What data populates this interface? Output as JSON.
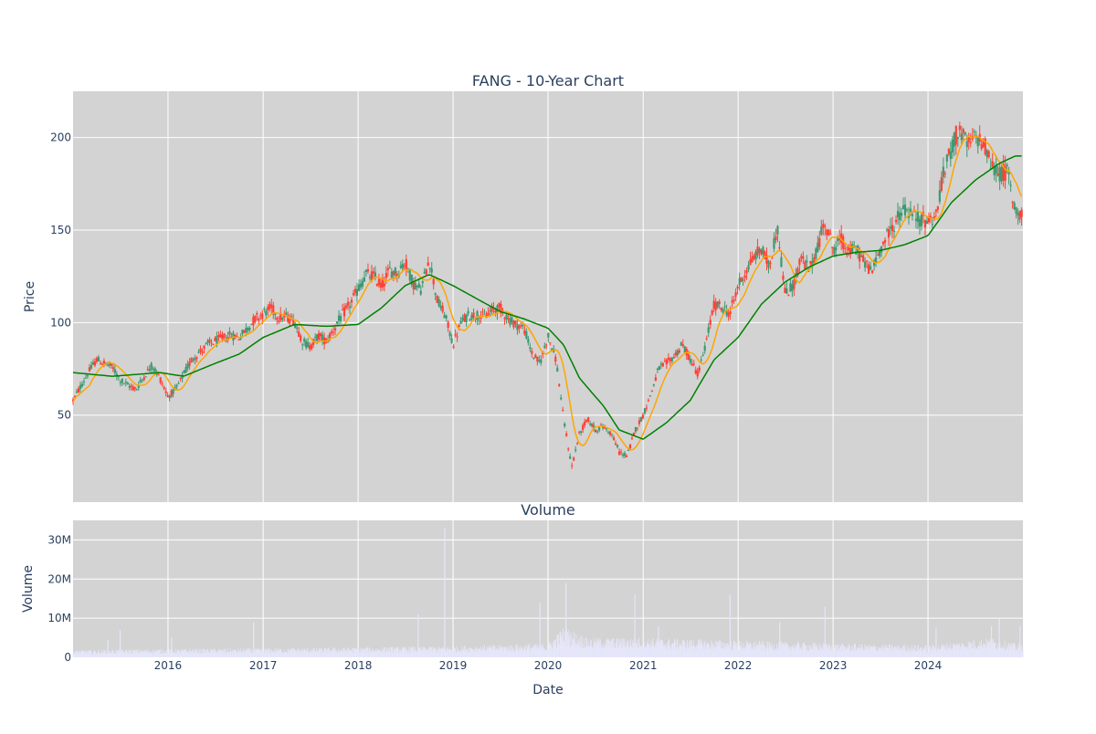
{
  "chart_data": [
    {
      "type": "candlestick",
      "title": "FANG - 10-Year Chart",
      "ylabel": "Price",
      "xlabel": "",
      "x_range": [
        "2015-01-01",
        "2024-12-31"
      ],
      "ylim": [
        3,
        225
      ],
      "grid": true,
      "plot_bg": "#d3d3d3",
      "up_color": "#3d9970",
      "down_color": "#ff4136",
      "ma_short_color": "#ffa500",
      "ma_long_color": "#008000",
      "x_ticks": [
        {
          "date": "2016-01-01",
          "label": "2016"
        },
        {
          "date": "2017-01-01",
          "label": "2017"
        },
        {
          "date": "2018-01-01",
          "label": "2018"
        },
        {
          "date": "2019-01-01",
          "label": "2019"
        },
        {
          "date": "2020-01-01",
          "label": "2020"
        },
        {
          "date": "2021-01-01",
          "label": "2021"
        },
        {
          "date": "2022-01-01",
          "label": "2022"
        },
        {
          "date": "2023-01-01",
          "label": "2023"
        },
        {
          "date": "2024-01-01",
          "label": "2024"
        }
      ],
      "y_ticks": [
        {
          "value": 50,
          "label": "50"
        },
        {
          "value": 100,
          "label": "100"
        },
        {
          "value": 150,
          "label": "150"
        },
        {
          "value": 200,
          "label": "200"
        }
      ],
      "close_path": [
        [
          "2015-01-01",
          58
        ],
        [
          "2015-02-01",
          66
        ],
        [
          "2015-03-01",
          73
        ],
        [
          "2015-04-01",
          80
        ],
        [
          "2015-05-01",
          78
        ],
        [
          "2015-06-01",
          76
        ],
        [
          "2015-07-01",
          69
        ],
        [
          "2015-08-01",
          66
        ],
        [
          "2015-09-01",
          64
        ],
        [
          "2015-10-01",
          71
        ],
        [
          "2015-11-01",
          77
        ],
        [
          "2015-12-01",
          70
        ],
        [
          "2016-01-01",
          60
        ],
        [
          "2016-02-01",
          64
        ],
        [
          "2016-03-01",
          72
        ],
        [
          "2016-04-01",
          80
        ],
        [
          "2016-05-01",
          84
        ],
        [
          "2016-06-01",
          88
        ],
        [
          "2016-07-01",
          90
        ],
        [
          "2016-08-01",
          92
        ],
        [
          "2016-09-01",
          93
        ],
        [
          "2016-10-01",
          92
        ],
        [
          "2016-11-01",
          97
        ],
        [
          "2016-12-01",
          102
        ],
        [
          "2017-01-01",
          105
        ],
        [
          "2017-02-01",
          108
        ],
        [
          "2017-03-01",
          103
        ],
        [
          "2017-04-01",
          103
        ],
        [
          "2017-05-01",
          101
        ],
        [
          "2017-06-01",
          90
        ],
        [
          "2017-07-01",
          87
        ],
        [
          "2017-08-01",
          93
        ],
        [
          "2017-09-01",
          90
        ],
        [
          "2017-10-01",
          97
        ],
        [
          "2017-11-01",
          104
        ],
        [
          "2017-12-01",
          110
        ],
        [
          "2018-01-01",
          118
        ],
        [
          "2018-02-01",
          126
        ],
        [
          "2018-03-01",
          125
        ],
        [
          "2018-04-01",
          120
        ],
        [
          "2018-05-01",
          128
        ],
        [
          "2018-06-01",
          127
        ],
        [
          "2018-07-01",
          133
        ],
        [
          "2018-08-01",
          121
        ],
        [
          "2018-09-01",
          118
        ],
        [
          "2018-10-01",
          135
        ],
        [
          "2018-11-01",
          112
        ],
        [
          "2018-12-01",
          104
        ],
        [
          "2019-01-01",
          88
        ],
        [
          "2019-02-01",
          100
        ],
        [
          "2019-03-01",
          104
        ],
        [
          "2019-04-01",
          104
        ],
        [
          "2019-05-01",
          103
        ],
        [
          "2019-06-01",
          107
        ],
        [
          "2019-07-01",
          108
        ],
        [
          "2019-08-01",
          102
        ],
        [
          "2019-09-01",
          99
        ],
        [
          "2019-10-01",
          97
        ],
        [
          "2019-11-01",
          83
        ],
        [
          "2019-12-01",
          78
        ],
        [
          "2020-01-01",
          93
        ],
        [
          "2020-02-01",
          80
        ],
        [
          "2020-03-01",
          48
        ],
        [
          "2020-04-01",
          22
        ],
        [
          "2020-05-01",
          40
        ],
        [
          "2020-06-01",
          48
        ],
        [
          "2020-07-01",
          42
        ],
        [
          "2020-08-01",
          44
        ],
        [
          "2020-09-01",
          40
        ],
        [
          "2020-10-01",
          30
        ],
        [
          "2020-11-01",
          28
        ],
        [
          "2020-12-01",
          42
        ],
        [
          "2021-01-01",
          50
        ],
        [
          "2021-02-01",
          62
        ],
        [
          "2021-03-01",
          75
        ],
        [
          "2021-04-01",
          78
        ],
        [
          "2021-05-01",
          82
        ],
        [
          "2021-06-01",
          88
        ],
        [
          "2021-07-01",
          80
        ],
        [
          "2021-08-01",
          72
        ],
        [
          "2021-09-01",
          90
        ],
        [
          "2021-10-01",
          110
        ],
        [
          "2021-11-01",
          108
        ],
        [
          "2021-12-01",
          105
        ],
        [
          "2022-01-01",
          120
        ],
        [
          "2022-02-01",
          128
        ],
        [
          "2022-03-01",
          135
        ],
        [
          "2022-04-01",
          140
        ],
        [
          "2022-05-01",
          130
        ],
        [
          "2022-06-01",
          152
        ],
        [
          "2022-07-01",
          115
        ],
        [
          "2022-08-01",
          120
        ],
        [
          "2022-09-01",
          135
        ],
        [
          "2022-10-01",
          128
        ],
        [
          "2022-11-01",
          140
        ],
        [
          "2022-12-01",
          155
        ],
        [
          "2023-01-01",
          140
        ],
        [
          "2023-02-01",
          145
        ],
        [
          "2023-03-01",
          138
        ],
        [
          "2023-04-01",
          140
        ],
        [
          "2023-05-01",
          132
        ],
        [
          "2023-06-01",
          128
        ],
        [
          "2023-07-01",
          140
        ],
        [
          "2023-08-01",
          148
        ],
        [
          "2023-09-01",
          155
        ],
        [
          "2023-10-01",
          162
        ],
        [
          "2023-11-01",
          158
        ],
        [
          "2023-12-01",
          156
        ],
        [
          "2024-01-01",
          155
        ],
        [
          "2024-02-01",
          158
        ],
        [
          "2024-03-01",
          180
        ],
        [
          "2024-04-01",
          195
        ],
        [
          "2024-05-01",
          205
        ],
        [
          "2024-06-01",
          195
        ],
        [
          "2024-07-01",
          200
        ],
        [
          "2024-08-01",
          198
        ],
        [
          "2024-09-01",
          185
        ],
        [
          "2024-10-01",
          180
        ],
        [
          "2024-11-01",
          182
        ],
        [
          "2024-12-01",
          160
        ]
      ],
      "ma_long": [
        [
          "2015-01-01",
          73
        ],
        [
          "2015-06-01",
          71
        ],
        [
          "2015-12-01",
          73
        ],
        [
          "2016-03-01",
          71
        ],
        [
          "2016-07-01",
          78
        ],
        [
          "2016-10-01",
          83
        ],
        [
          "2017-01-01",
          92
        ],
        [
          "2017-05-01",
          99
        ],
        [
          "2017-09-01",
          98
        ],
        [
          "2018-01-01",
          99
        ],
        [
          "2018-04-01",
          108
        ],
        [
          "2018-07-01",
          120
        ],
        [
          "2018-10-01",
          126
        ],
        [
          "2019-01-01",
          120
        ],
        [
          "2019-04-01",
          113
        ],
        [
          "2019-07-01",
          106
        ],
        [
          "2019-10-01",
          102
        ],
        [
          "2020-01-01",
          97
        ],
        [
          "2020-03-01",
          88
        ],
        [
          "2020-05-01",
          70
        ],
        [
          "2020-08-01",
          55
        ],
        [
          "2020-10-01",
          42
        ],
        [
          "2021-01-01",
          37
        ],
        [
          "2021-04-01",
          46
        ],
        [
          "2021-07-01",
          58
        ],
        [
          "2021-10-01",
          80
        ],
        [
          "2022-01-01",
          92
        ],
        [
          "2022-04-01",
          110
        ],
        [
          "2022-07-01",
          122
        ],
        [
          "2022-10-01",
          130
        ],
        [
          "2023-01-01",
          136
        ],
        [
          "2023-04-01",
          138
        ],
        [
          "2023-07-01",
          139
        ],
        [
          "2023-10-01",
          142
        ],
        [
          "2024-01-01",
          147
        ],
        [
          "2024-04-01",
          165
        ],
        [
          "2024-07-01",
          177
        ],
        [
          "2024-10-01",
          186
        ],
        [
          "2024-12-01",
          190
        ]
      ]
    },
    {
      "type": "bar",
      "title": "Volume",
      "xlabel": "Date",
      "ylabel": "Volume",
      "ylim": [
        0,
        35000000
      ],
      "grid": true,
      "plot_bg": "#d3d3d3",
      "bar_color": "#e6e6fa",
      "y_ticks": [
        {
          "value": 0,
          "label": "0"
        },
        {
          "value": 10000000,
          "label": "10M"
        },
        {
          "value": 20000000,
          "label": "20M"
        },
        {
          "value": 30000000,
          "label": "30M"
        }
      ],
      "baseline_volume": [
        [
          "2015-01-01",
          1300000
        ],
        [
          "2016-01-01",
          1500000
        ],
        [
          "2017-01-01",
          1600000
        ],
        [
          "2018-01-01",
          1800000
        ],
        [
          "2019-01-01",
          2000000
        ],
        [
          "2020-01-01",
          2500000
        ],
        [
          "2020-03-01",
          5500000
        ],
        [
          "2020-06-01",
          3500000
        ],
        [
          "2021-01-01",
          3500000
        ],
        [
          "2022-01-01",
          3000000
        ],
        [
          "2023-01-01",
          2500000
        ],
        [
          "2024-01-01",
          2200000
        ],
        [
          "2024-09-01",
          3500000
        ],
        [
          "2024-12-01",
          2500000
        ]
      ],
      "volume_spikes": [
        [
          "2015-05-15",
          4500000
        ],
        [
          "2015-07-01",
          7000000
        ],
        [
          "2016-01-15",
          5000000
        ],
        [
          "2016-11-25",
          9000000
        ],
        [
          "2018-08-20",
          11000000
        ],
        [
          "2018-11-30",
          33000000
        ],
        [
          "2019-12-01",
          14000000
        ],
        [
          "2020-03-10",
          19000000
        ],
        [
          "2020-11-30",
          16000000
        ],
        [
          "2021-03-01",
          8000000
        ],
        [
          "2021-12-01",
          16000000
        ],
        [
          "2022-06-10",
          9000000
        ],
        [
          "2022-12-01",
          13000000
        ],
        [
          "2024-02-01",
          7500000
        ],
        [
          "2024-09-01",
          8000000
        ],
        [
          "2024-10-01",
          10000000
        ],
        [
          "2024-12-20",
          8000000
        ]
      ]
    }
  ]
}
